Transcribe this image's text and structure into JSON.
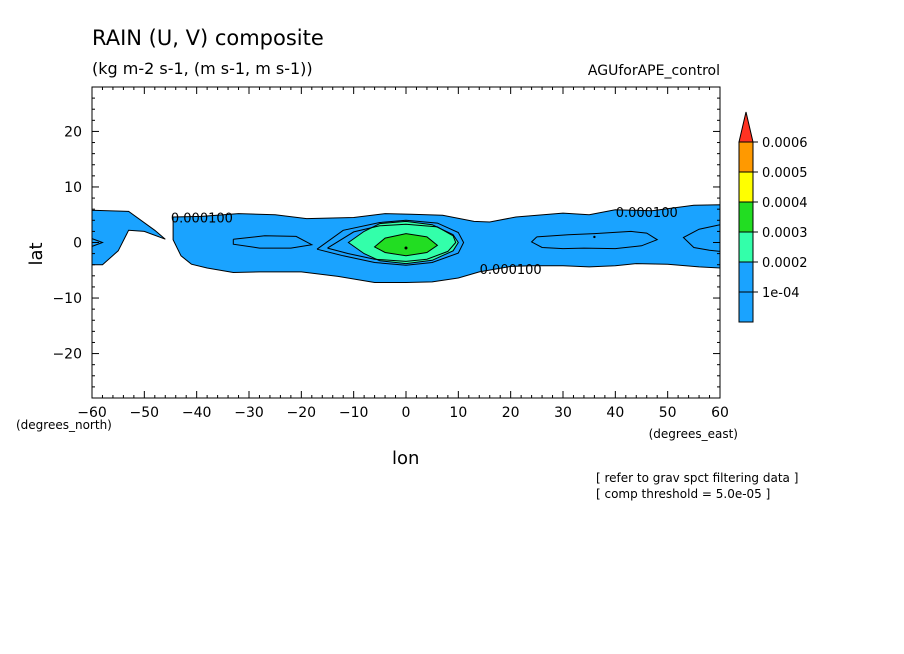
{
  "chart_data": {
    "type": "contour",
    "title": "RAIN (U, V) composite",
    "subtitle": "(kg m-2 s-1, (m s-1, m s-1))",
    "run_label": "AGUforAPE_control",
    "xlabel": "lon",
    "ylabel": "lat",
    "x_unit_label": "(degrees_east)",
    "y_unit_label": "(degrees_north)",
    "xlim": [
      -60,
      60
    ],
    "ylim": [
      -28,
      28
    ],
    "x_ticks": [
      -60,
      -50,
      -40,
      -30,
      -20,
      -10,
      0,
      10,
      20,
      30,
      40,
      50,
      60
    ],
    "y_ticks": [
      -20,
      -10,
      0,
      10,
      20
    ],
    "contour_labels": [
      {
        "text": "0.000100",
        "lon": -39,
        "lat": 4.5
      },
      {
        "text": "0.000100",
        "lon": 46,
        "lat": 5.5
      },
      {
        "text": "0.000100",
        "lon": 20,
        "lat": -4.8
      }
    ],
    "regions": [
      {
        "level": 0.0001,
        "color": "#1aa3ff",
        "polygon": [
          [
            -60,
            5.8
          ],
          [
            -53,
            5.6
          ],
          [
            -48,
            2.2
          ],
          [
            -46,
            0.6
          ],
          [
            -50,
            2.0
          ],
          [
            -53,
            2.2
          ],
          [
            -55,
            -1.5
          ],
          [
            -58,
            -4.0
          ],
          [
            -60,
            -4.0
          ]
        ]
      },
      {
        "level": 0.0001,
        "color": "#1aa3ff",
        "polygon": [
          [
            -44.5,
            4.6
          ],
          [
            -39,
            4.7
          ],
          [
            -32,
            5.2
          ],
          [
            -25,
            5.0
          ],
          [
            -19,
            4.3
          ],
          [
            -10,
            4.5
          ],
          [
            -4,
            5.2
          ],
          [
            1,
            5.1
          ],
          [
            7,
            4.9
          ],
          [
            13,
            3.8
          ],
          [
            16,
            3.7
          ],
          [
            21,
            4.6
          ],
          [
            30,
            5.3
          ],
          [
            35,
            5.0
          ],
          [
            40,
            5.9
          ],
          [
            47,
            5.7
          ],
          [
            55,
            6.7
          ],
          [
            60,
            6.8
          ],
          [
            60,
            -4.6
          ],
          [
            56,
            -4.4
          ],
          [
            50,
            -3.9
          ],
          [
            44,
            -3.8
          ],
          [
            40,
            -4.2
          ],
          [
            35,
            -4.4
          ],
          [
            30,
            -4.2
          ],
          [
            24,
            -4.2
          ],
          [
            20,
            -4.3
          ],
          [
            14,
            -5.3
          ],
          [
            10,
            -6.4
          ],
          [
            5,
            -7.1
          ],
          [
            0,
            -7.2
          ],
          [
            -6,
            -7.2
          ],
          [
            -13,
            -6.1
          ],
          [
            -20,
            -5.3
          ],
          [
            -28,
            -5.3
          ],
          [
            -33,
            -5.4
          ],
          [
            -38,
            -4.6
          ],
          [
            -41,
            -3.9
          ],
          [
            -43,
            -2.4
          ],
          [
            -44.5,
            0.5
          ]
        ]
      },
      {
        "level": 0.0003,
        "color": "#33ffaa",
        "polygon": [
          [
            -11,
            0.0
          ],
          [
            -8,
            2.0
          ],
          [
            -5,
            3.4
          ],
          [
            0,
            3.8
          ],
          [
            5,
            3.2
          ],
          [
            9,
            1.4
          ],
          [
            10,
            0.0
          ],
          [
            9,
            -1.5
          ],
          [
            5,
            -3.2
          ],
          [
            0,
            -3.8
          ],
          [
            -5,
            -3.3
          ],
          [
            -8,
            -2.0
          ]
        ]
      },
      {
        "level": 0.0004,
        "color": "#22dd22",
        "polygon": [
          [
            -6,
            -0.8
          ],
          [
            -4,
            0.8
          ],
          [
            0,
            1.6
          ],
          [
            4,
            1.0
          ],
          [
            6,
            -0.5
          ],
          [
            4,
            -1.8
          ],
          [
            0,
            -2.4
          ],
          [
            -4,
            -1.8
          ]
        ]
      }
    ],
    "contour_lines": [
      [
        [
          -17,
          -1.2
        ],
        [
          -12,
          2.2
        ],
        [
          -5,
          3.6
        ],
        [
          0,
          4.0
        ],
        [
          6,
          3.5
        ],
        [
          10,
          1.8
        ],
        [
          11,
          0.0
        ],
        [
          10,
          -1.9
        ],
        [
          5,
          -3.6
        ],
        [
          0,
          -4.1
        ],
        [
          -6,
          -3.6
        ],
        [
          -12,
          -2.4
        ],
        [
          -17,
          -1.2
        ]
      ],
      [
        [
          -15,
          -1.0
        ],
        [
          -10,
          1.9
        ],
        [
          -5,
          3.0
        ],
        [
          0,
          3.3
        ],
        [
          6,
          2.8
        ],
        [
          9,
          1.2
        ],
        [
          9.5,
          0.0
        ],
        [
          8,
          -1.6
        ],
        [
          4,
          -3.0
        ],
        [
          0,
          -3.4
        ],
        [
          -6,
          -3.0
        ],
        [
          -11,
          -2.0
        ],
        [
          -15,
          -1.0
        ]
      ],
      [
        [
          -33,
          0.6
        ],
        [
          -27,
          1.2
        ],
        [
          -21,
          1.1
        ],
        [
          -18,
          -0.4
        ],
        [
          -22,
          -1.0
        ],
        [
          -28,
          -1.0
        ],
        [
          -33,
          -0.3
        ],
        [
          -33,
          0.6
        ]
      ],
      [
        [
          25,
          1.0
        ],
        [
          31,
          1.4
        ],
        [
          36,
          1.6
        ],
        [
          43,
          2.0
        ],
        [
          46,
          1.7
        ],
        [
          48,
          0.5
        ],
        [
          45,
          -0.6
        ],
        [
          40,
          -1.1
        ],
        [
          34,
          -1.0
        ],
        [
          30,
          -1.1
        ],
        [
          26,
          -0.9
        ],
        [
          24,
          0.1
        ],
        [
          25,
          1.0
        ]
      ],
      [
        [
          60,
          3.2
        ],
        [
          56,
          2.4
        ],
        [
          53,
          0.9
        ],
        [
          55,
          -0.9
        ],
        [
          58,
          -1.4
        ],
        [
          60,
          -1.6
        ]
      ],
      [
        [
          -60,
          0.7
        ],
        [
          -58,
          0.0
        ],
        [
          -60,
          -0.7
        ]
      ]
    ],
    "legend": {
      "levels": [
        "0.0006",
        "0.0005",
        "0.0004",
        "0.0003",
        "0.0002",
        "1e-04"
      ],
      "colors": [
        "#ff3322",
        "#ff9900",
        "#ffff00",
        "#22dd22",
        "#33ffaa",
        "#1aa3ff",
        "#1aa3ff"
      ]
    },
    "notes": [
      "[ refer to grav spct filtering data ]",
      "[ comp threshold = 5.0e-05 ]"
    ]
  }
}
